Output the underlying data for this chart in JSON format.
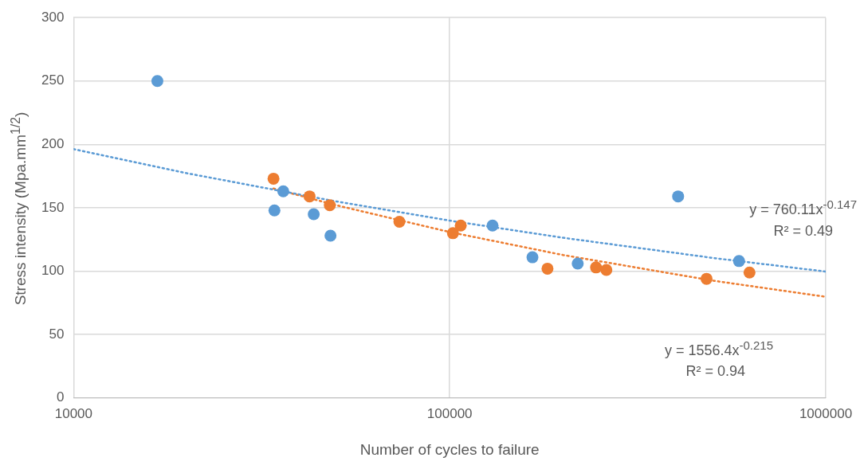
{
  "chart_data": {
    "type": "scatter",
    "xlabel": "Number of cycles to failure",
    "ylabel": "Stress intensity (Mpa.mm$^{1/2}$)",
    "log": "x",
    "xlim": [
      10000,
      1000000
    ],
    "xticks": [
      10000,
      100000,
      1000000
    ],
    "ylim": [
      0,
      300
    ],
    "yticks": [
      0,
      50,
      100,
      150,
      200,
      250,
      300
    ],
    "grid": true,
    "marker": "circle",
    "series": [
      {
        "color": "#5b9bd5",
        "x": [
          16700,
          34200,
          36100,
          43500,
          48200,
          105000,
          130000,
          166000,
          219000,
          405000,
          588000
        ],
        "values": [
          250,
          148,
          163,
          145,
          128,
          null,
          136,
          111,
          106,
          159,
          108
        ]
      },
      {
        "color": "#ed7d31",
        "x": [
          34000,
          42400,
          48000,
          73500,
          102000,
          107000,
          182000,
          245000,
          261000,
          482000,
          627000
        ],
        "values": [
          173,
          159,
          152,
          139,
          130,
          136,
          102,
          103,
          101,
          94,
          99
        ]
      },
      {
        "type": "line",
        "line_style": "dotted",
        "marker": "none",
        "color": "#5b9bd5",
        "x": [
          10000,
          20000,
          50000,
          100000,
          200000,
          500000,
          1000000
        ],
        "values": [
          196.3,
          177.3,
          155.0,
          139.9,
          126.4,
          110.5,
          99.7
        ]
      },
      {
        "type": "line",
        "line_style": "dotted",
        "marker": "none",
        "color": "#ed7d31",
        "x": [
          34000,
          50000,
          100000,
          200000,
          500000,
          1000000
        ],
        "values": [
          165.2,
          152.0,
          130.9,
          112.8,
          92.6,
          79.8
        ]
      }
    ],
    "annotations": [
      "y = 760.11x$^{-0.147}$",
      "R² = 0.49",
      "y = 1556.4x$^{-0.215}$",
      "R² = 0.94"
    ]
  }
}
